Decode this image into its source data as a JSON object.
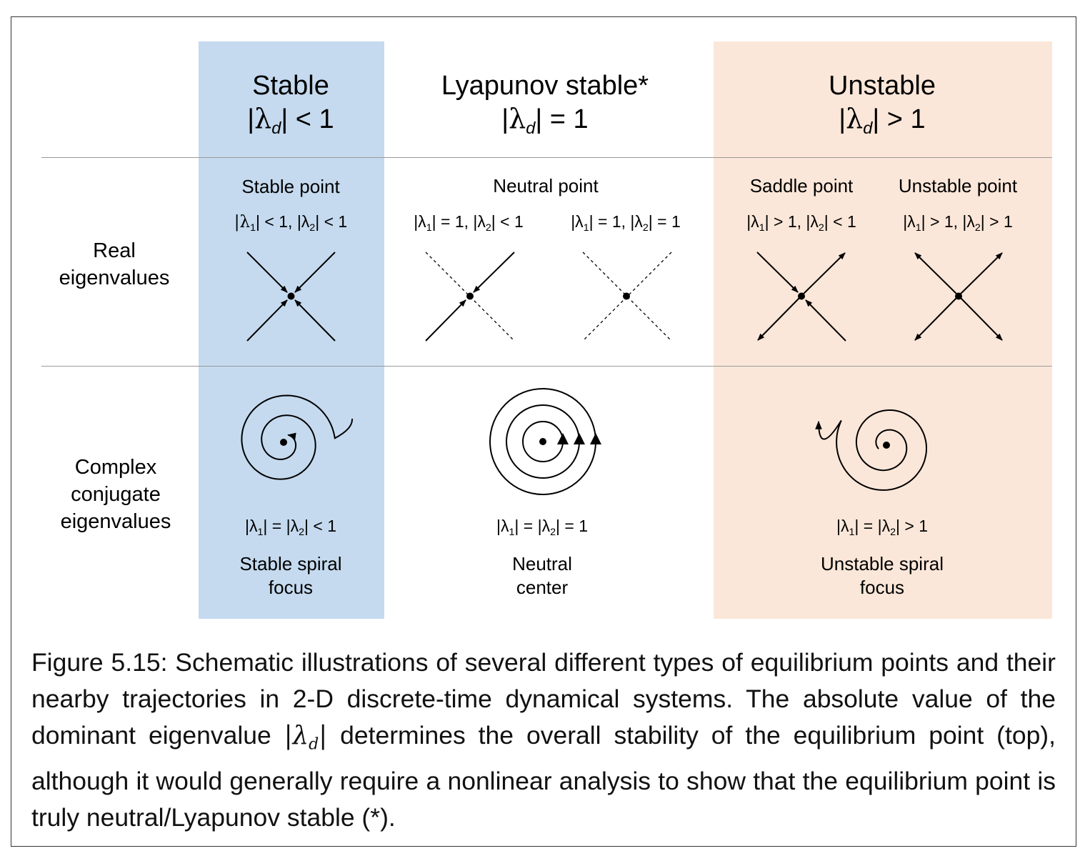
{
  "colors": {
    "stable_band": "#c5daef",
    "unstable_band": "#fbe7d9",
    "rule": "#9a9a9a",
    "border": "#333333"
  },
  "columns": {
    "stable": {
      "title": "Stable",
      "cond_pre": "|",
      "cond_sym": "λ",
      "cond_sub": "d",
      "cond_post": "| < 1"
    },
    "lyapunov": {
      "title": "Lyapunov stable*",
      "cond_pre": "|",
      "cond_sym": "λ",
      "cond_sub": "d",
      "cond_post": "| = 1"
    },
    "unstable": {
      "title": "Unstable",
      "cond_pre": "|",
      "cond_sym": "λ",
      "cond_sub": "d",
      "cond_post": "| > 1"
    }
  },
  "rows": {
    "real": {
      "label_line1": "Real",
      "label_line2": "eigenvalues"
    },
    "complex": {
      "label_line1": "Complex",
      "label_line2": "conjugate",
      "label_line3": "eigenvalues"
    }
  },
  "real_cells": {
    "stable_point": {
      "name": "Stable point",
      "c1": "|λ",
      "s1": "1",
      "c2": "| < 1, |λ",
      "s2": "2",
      "c3": "| < 1"
    },
    "neutral_point": {
      "name": "Neutral point"
    },
    "neutral_a": {
      "c1": "|λ",
      "s1": "1",
      "c2": "| = 1, |λ",
      "s2": "2",
      "c3": "| < 1"
    },
    "neutral_b": {
      "c1": "|λ",
      "s1": "1",
      "c2": "| = 1, |λ",
      "s2": "2",
      "c3": "| = 1"
    },
    "saddle_point": {
      "name": "Saddle point",
      "c1": "|λ",
      "s1": "1",
      "c2": "| > 1, |λ",
      "s2": "2",
      "c3": "| < 1"
    },
    "unstable_point": {
      "name": "Unstable point",
      "c1": "|λ",
      "s1": "1",
      "c2": "| > 1, |λ",
      "s2": "2",
      "c3": "| > 1"
    }
  },
  "complex_cells": {
    "stable": {
      "c1": "|λ",
      "s1": "1",
      "c2": "| = |λ",
      "s2": "2",
      "c3": "| < 1",
      "name_line1": "Stable spiral",
      "name_line2": "focus"
    },
    "neutral": {
      "c1": "|λ",
      "s1": "1",
      "c2": "| = |λ",
      "s2": "2",
      "c3": "| = 1",
      "name_line1": "Neutral",
      "name_line2": "center"
    },
    "unstable": {
      "c1": "|λ",
      "s1": "1",
      "c2": "| = |λ",
      "s2": "2",
      "c3": "| > 1",
      "name_line1": "Unstable spiral",
      "name_line2": "focus"
    }
  },
  "caption": {
    "part1": "Figure 5.15:  Schematic illustrations of several different types of equilibrium points and their nearby trajectories in 2-D discrete-time dynamical systems.  The absolute value of the dominant eigenvalue ",
    "math_pre": "|",
    "math_sym": "λ",
    "math_sub": "d",
    "math_post": "|",
    "part2": " determines the overall stability of the equilibrium point (top), although it would generally require a nonlinear analysis to show that the equilibrium point is truly neutral/Lyapunov stable (*)."
  }
}
